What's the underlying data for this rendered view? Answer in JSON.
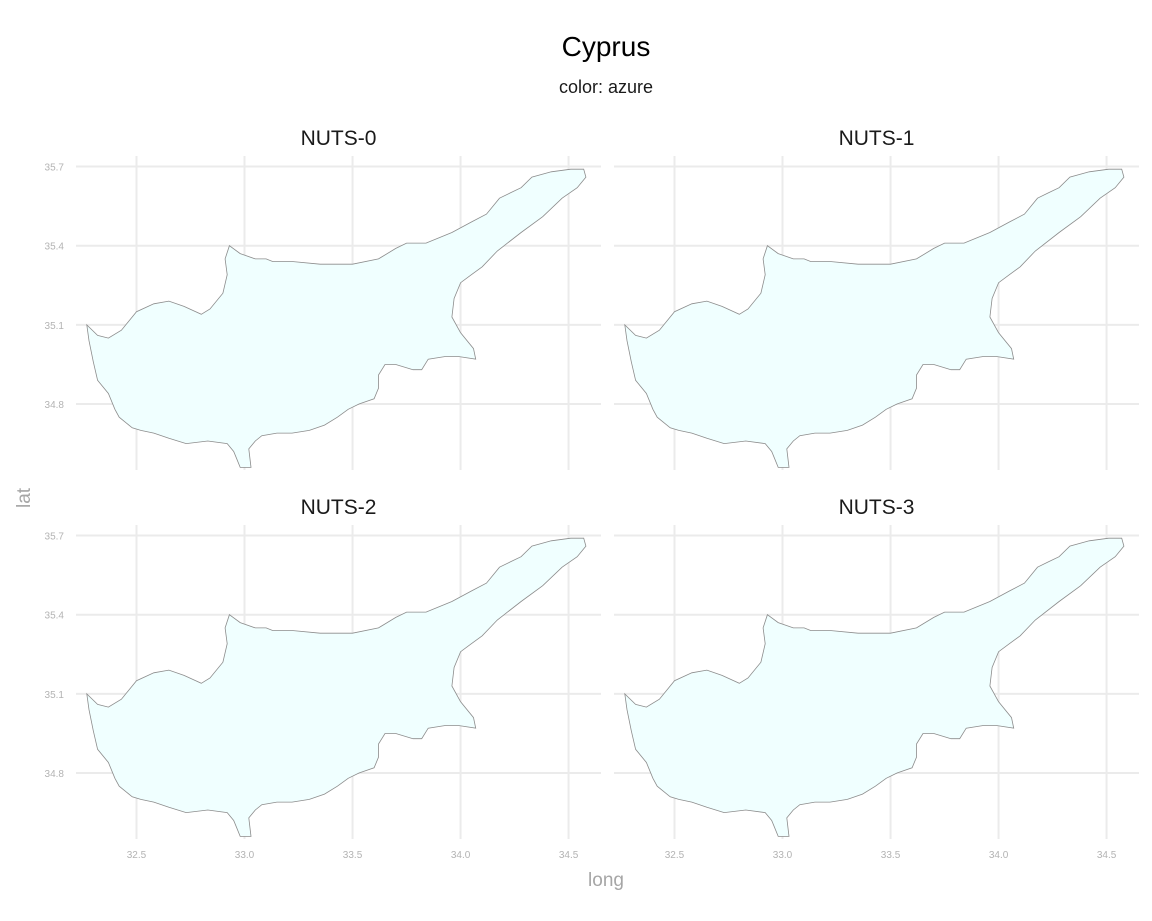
{
  "title": "Cyprus",
  "subtitle": "color: azure",
  "fill_color": "#F0FFFF",
  "outline_color": "#8C8C8C",
  "grid_color": "#EBEBEB",
  "chart_data": {
    "type": "map",
    "title": "Cyprus",
    "subtitle": "color: azure",
    "xlabel": "long",
    "ylabel": "lat",
    "xlim": [
      32.22,
      34.65
    ],
    "ylim": [
      34.55,
      35.74
    ],
    "x_ticks": [
      "32.5",
      "33.0",
      "33.5",
      "34.0",
      "34.5"
    ],
    "y_ticks": [
      "34.8",
      "35.1",
      "35.4",
      "35.7"
    ],
    "grid": true,
    "panels": [
      {
        "label": "NUTS-0"
      },
      {
        "label": "NUTS-1"
      },
      {
        "label": "NUTS-2"
      },
      {
        "label": "NUTS-3"
      }
    ],
    "outline": [
      [
        32.27,
        35.1
      ],
      [
        32.32,
        35.06
      ],
      [
        32.37,
        35.05
      ],
      [
        32.43,
        35.08
      ],
      [
        32.5,
        35.15
      ],
      [
        32.58,
        35.18
      ],
      [
        32.65,
        35.19
      ],
      [
        32.72,
        35.17
      ],
      [
        32.8,
        35.14
      ],
      [
        32.84,
        35.16
      ],
      [
        32.9,
        35.22
      ],
      [
        32.92,
        35.29
      ],
      [
        32.91,
        35.35
      ],
      [
        32.93,
        35.4
      ],
      [
        32.98,
        35.37
      ],
      [
        33.05,
        35.35
      ],
      [
        33.1,
        35.35
      ],
      [
        33.13,
        35.34
      ],
      [
        33.22,
        35.34
      ],
      [
        33.35,
        35.33
      ],
      [
        33.5,
        35.33
      ],
      [
        33.62,
        35.35
      ],
      [
        33.7,
        35.39
      ],
      [
        33.75,
        35.41
      ],
      [
        33.84,
        35.41
      ],
      [
        33.96,
        35.45
      ],
      [
        34.05,
        35.49
      ],
      [
        34.12,
        35.52
      ],
      [
        34.18,
        35.58
      ],
      [
        34.23,
        35.6
      ],
      [
        34.28,
        35.62
      ],
      [
        34.33,
        35.66
      ],
      [
        34.42,
        35.68
      ],
      [
        34.51,
        35.69
      ],
      [
        34.57,
        35.69
      ],
      [
        34.58,
        35.66
      ],
      [
        34.54,
        35.62
      ],
      [
        34.47,
        35.58
      ],
      [
        34.38,
        35.51
      ],
      [
        34.28,
        35.45
      ],
      [
        34.17,
        35.38
      ],
      [
        34.1,
        35.32
      ],
      [
        34.05,
        35.29
      ],
      [
        34.0,
        35.26
      ],
      [
        33.97,
        35.2
      ],
      [
        33.96,
        35.13
      ],
      [
        34.0,
        35.07
      ],
      [
        34.06,
        35.01
      ],
      [
        34.07,
        34.97
      ],
      [
        33.99,
        34.98
      ],
      [
        33.93,
        34.98
      ],
      [
        33.85,
        34.97
      ],
      [
        33.82,
        34.93
      ],
      [
        33.78,
        34.93
      ],
      [
        33.7,
        34.95
      ],
      [
        33.65,
        34.95
      ],
      [
        33.62,
        34.91
      ],
      [
        33.62,
        34.86
      ],
      [
        33.6,
        34.82
      ],
      [
        33.53,
        34.8
      ],
      [
        33.48,
        34.78
      ],
      [
        33.43,
        34.75
      ],
      [
        33.37,
        34.72
      ],
      [
        33.3,
        34.7
      ],
      [
        33.22,
        34.69
      ],
      [
        33.15,
        34.69
      ],
      [
        33.08,
        34.68
      ],
      [
        33.05,
        34.66
      ],
      [
        33.02,
        34.63
      ],
      [
        33.03,
        34.56
      ],
      [
        32.98,
        34.56
      ],
      [
        32.96,
        34.6
      ],
      [
        32.95,
        34.62
      ],
      [
        32.92,
        34.65
      ],
      [
        32.83,
        34.66
      ],
      [
        32.73,
        34.65
      ],
      [
        32.65,
        34.67
      ],
      [
        32.58,
        34.69
      ],
      [
        32.52,
        34.7
      ],
      [
        32.48,
        34.71
      ],
      [
        32.42,
        34.75
      ],
      [
        32.4,
        34.78
      ],
      [
        32.37,
        34.84
      ],
      [
        32.32,
        34.89
      ],
      [
        32.3,
        34.96
      ],
      [
        32.28,
        35.04
      ],
      [
        32.27,
        35.1
      ]
    ]
  }
}
